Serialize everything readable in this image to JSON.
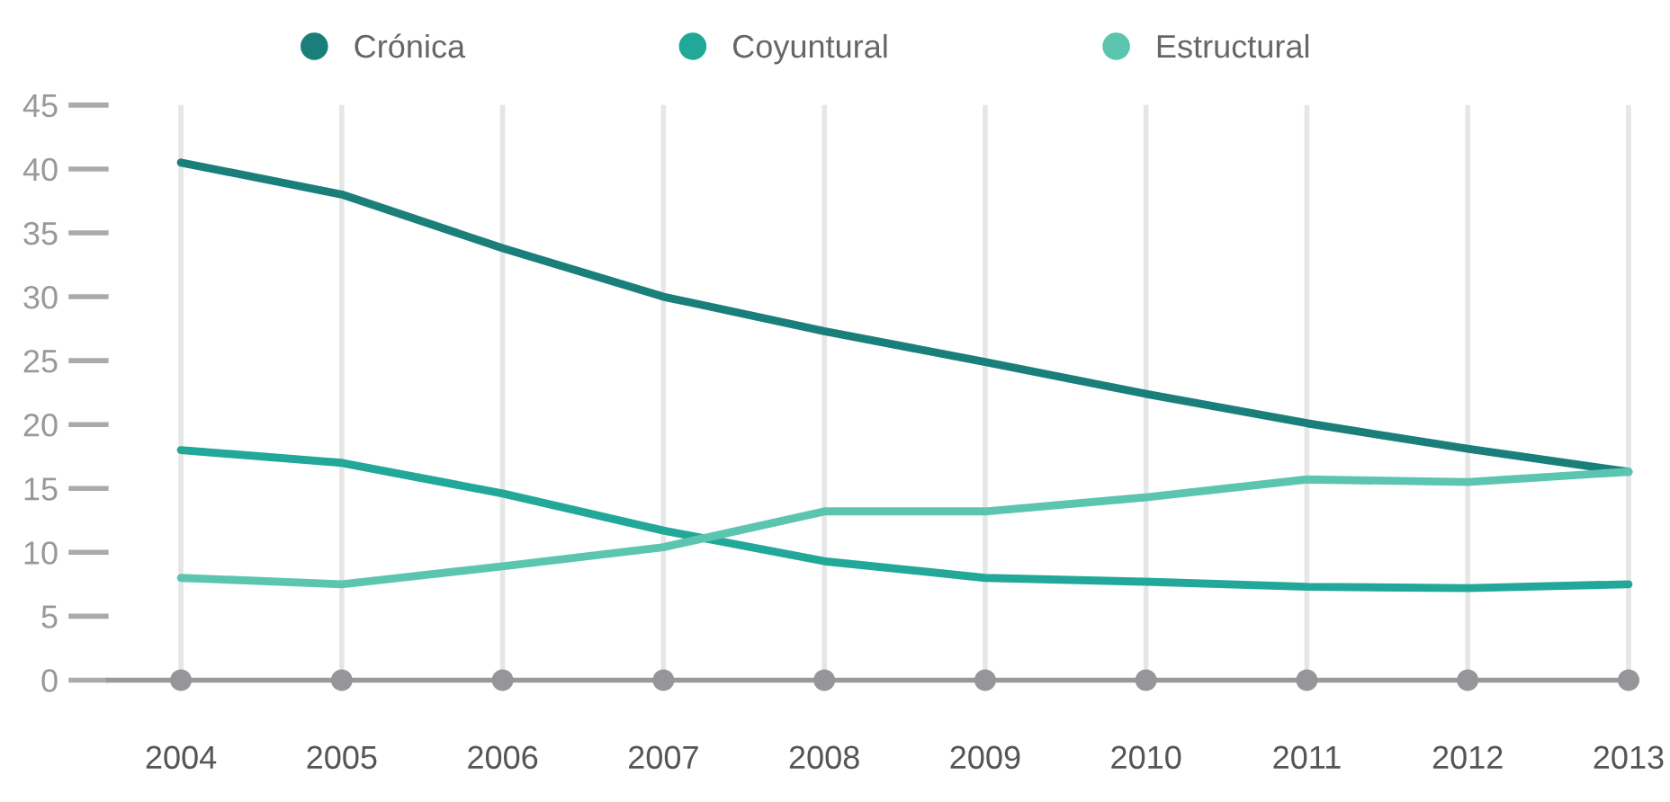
{
  "chart_data": {
    "type": "line",
    "categories": [
      "2004",
      "2005",
      "2006",
      "2007",
      "2008",
      "2009",
      "2010",
      "2011",
      "2012",
      "2013"
    ],
    "series": [
      {
        "name": "Crónica",
        "color": "#1a7f7a",
        "values": [
          40.5,
          38.0,
          33.8,
          30.0,
          27.3,
          24.9,
          22.4,
          20.1,
          18.1,
          16.3
        ]
      },
      {
        "name": "Coyuntural",
        "color": "#22a898",
        "values": [
          18.0,
          17.0,
          14.6,
          11.7,
          9.3,
          8.0,
          7.7,
          7.3,
          7.2,
          7.5
        ]
      },
      {
        "name": "Estructural",
        "color": "#5cc5b0",
        "values": [
          8.0,
          7.5,
          8.9,
          10.4,
          13.2,
          13.2,
          14.3,
          15.7,
          15.5,
          16.3
        ]
      }
    ],
    "ylim": [
      0,
      45
    ],
    "yticks": [
      0,
      5,
      10,
      15,
      20,
      25,
      30,
      35,
      40,
      45
    ],
    "grid": "x",
    "legend": "top",
    "marker": "none",
    "line_style": "solid"
  }
}
